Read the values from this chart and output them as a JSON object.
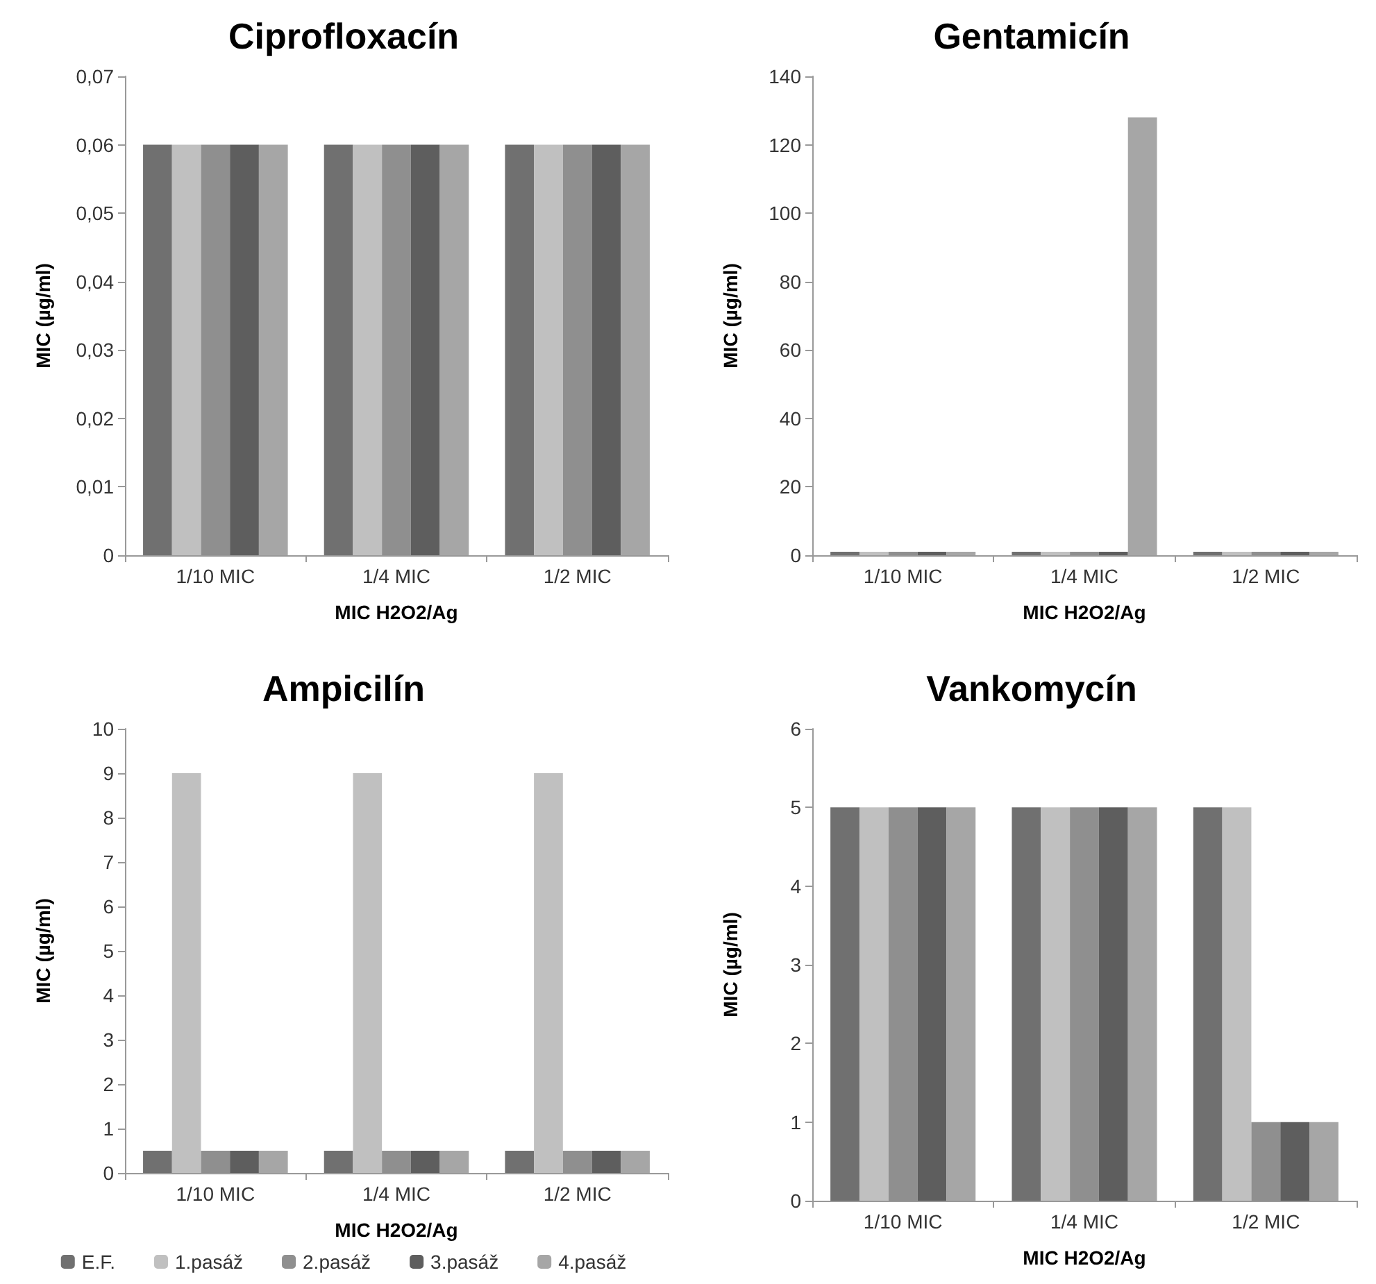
{
  "chart_data": [
    {
      "type": "bar",
      "title": "Ciprofloxacín",
      "xlabel": "MIC H2O2/Ag",
      "ylabel": "MIC (µg/ml)",
      "categories": [
        "1/10 MIC",
        "1/4 MIC",
        "1/2 MIC"
      ],
      "series": [
        {
          "color": "#707070",
          "values": [
            0.06,
            0.06,
            0.06
          ]
        },
        {
          "color": "#c0c0c0",
          "values": [
            0.06,
            0.06,
            0.06
          ]
        },
        {
          "color": "#8f8f8f",
          "values": [
            0.06,
            0.06,
            0.06
          ]
        },
        {
          "color": "#5e5e5e",
          "values": [
            0.06,
            0.06,
            0.06
          ]
        },
        {
          "color": "#a6a6a6",
          "values": [
            0.06,
            0.06,
            0.06
          ]
        }
      ],
      "ylim": [
        0,
        0.07
      ],
      "yticks": [
        0,
        {
          "value": 0.01,
          "label": "0,01"
        },
        {
          "value": 0.02,
          "label": "0,02"
        },
        {
          "value": 0.03,
          "label": "0,03"
        },
        {
          "value": 0.04,
          "label": "0,04"
        },
        {
          "value": 0.05,
          "label": "0,05"
        },
        {
          "value": 0.06,
          "label": "0,06"
        },
        {
          "value": 0.07,
          "label": "0,07"
        }
      ],
      "grid": false,
      "legend": false
    },
    {
      "type": "bar",
      "title": "Gentamicín",
      "xlabel": "MIC H2O2/Ag",
      "ylabel": "MIC (µg/ml)",
      "categories": [
        "1/10 MIC",
        "1/4 MIC",
        "1/2 MIC"
      ],
      "series": [
        {
          "color": "#707070",
          "values": [
            1,
            1,
            1
          ]
        },
        {
          "color": "#c0c0c0",
          "values": [
            1,
            1,
            1
          ]
        },
        {
          "color": "#8f8f8f",
          "values": [
            1,
            1,
            1
          ]
        },
        {
          "color": "#5e5e5e",
          "values": [
            1,
            1,
            1
          ]
        },
        {
          "color": "#a6a6a6",
          "values": [
            1,
            128,
            1
          ]
        }
      ],
      "ylim": [
        0,
        140
      ],
      "yticks": [
        0,
        20,
        40,
        60,
        80,
        100,
        120,
        140
      ],
      "grid": false,
      "legend": false
    },
    {
      "type": "bar",
      "title": "Ampicilín",
      "xlabel": "MIC H2O2/Ag",
      "ylabel": "MIC (µg/ml)",
      "categories": [
        "1/10 MIC",
        "1/4 MIC",
        "1/2 MIC"
      ],
      "series": [
        {
          "name": "E.F.",
          "color": "#707070",
          "values": [
            0.5,
            0.5,
            0.5
          ]
        },
        {
          "name": "1.pasáž",
          "color": "#c0c0c0",
          "values": [
            9,
            9,
            9
          ]
        },
        {
          "name": "2.pasáž",
          "color": "#8f8f8f",
          "values": [
            0.5,
            0.5,
            0.5
          ]
        },
        {
          "name": "3.pasáž",
          "color": "#5e5e5e",
          "values": [
            0.5,
            0.5,
            0.5
          ]
        },
        {
          "name": "4.pasáž",
          "color": "#a6a6a6",
          "values": [
            0.5,
            0.5,
            0.5
          ]
        }
      ],
      "ylim": [
        0,
        10
      ],
      "yticks": [
        0,
        1,
        2,
        3,
        4,
        5,
        6,
        7,
        8,
        9,
        10
      ],
      "grid": false,
      "legend": "bottom"
    },
    {
      "type": "bar",
      "title": "Vankomycín",
      "xlabel": "MIC H2O2/Ag",
      "ylabel": "MIC (µg/ml)",
      "categories": [
        "1/10 MIC",
        "1/4 MIC",
        "1/2 MIC"
      ],
      "series": [
        {
          "color": "#707070",
          "values": [
            5,
            5,
            5
          ]
        },
        {
          "color": "#c0c0c0",
          "values": [
            5,
            5,
            5
          ]
        },
        {
          "color": "#8f8f8f",
          "values": [
            5,
            5,
            1
          ]
        },
        {
          "color": "#5e5e5e",
          "values": [
            5,
            5,
            1
          ]
        },
        {
          "color": "#a6a6a6",
          "values": [
            5,
            5,
            1
          ]
        }
      ],
      "ylim": [
        0,
        6
      ],
      "yticks": [
        0,
        1,
        2,
        3,
        4,
        5,
        6
      ],
      "grid": false,
      "legend": false
    }
  ]
}
